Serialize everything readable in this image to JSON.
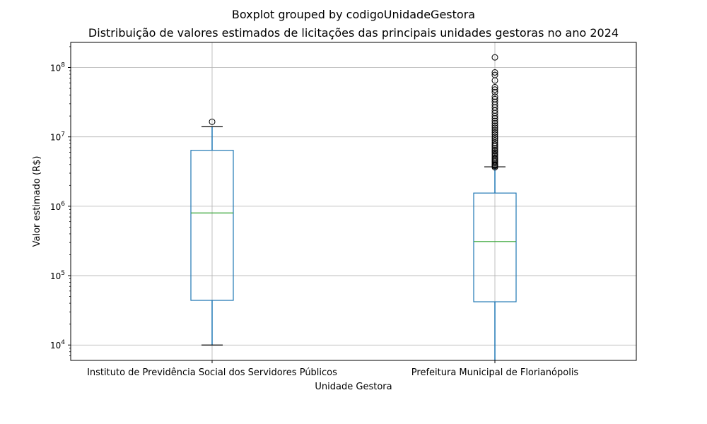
{
  "chart_data": {
    "type": "box",
    "suptitle": "Boxplot grouped by codigoUnidadeGestora",
    "title": "Distribuição de valores estimados de licitações das principais unidades gestoras no ano 2024",
    "xlabel": "Unidade Gestora",
    "ylabel": "Valor estimado (R$)",
    "yscale": "log",
    "ylim": [
      6000,
      230000000
    ],
    "yticks": [
      10000,
      100000,
      1000000,
      10000000,
      100000000
    ],
    "ytick_labels": [
      {
        "base": "10",
        "exp": "4"
      },
      {
        "base": "10",
        "exp": "5"
      },
      {
        "base": "10",
        "exp": "6"
      },
      {
        "base": "10",
        "exp": "7"
      },
      {
        "base": "10",
        "exp": "8"
      }
    ],
    "grid": true,
    "colors": {
      "box": "#1f77b4",
      "median": "#2ca02c",
      "cap": "#000000",
      "grid": "#b0b0b0"
    },
    "categories": [
      "Instituto de Previdência Social dos Servidores Públicos",
      "Prefeitura Municipal de Florianópolis"
    ],
    "boxes": [
      {
        "category": "Instituto de Previdência Social dos Servidores Públicos",
        "whisker_low": 10000,
        "q1": 44000,
        "median": 800000,
        "q3": 6400000,
        "whisker_high": 14000000,
        "outliers": [
          16500000
        ]
      },
      {
        "category": "Prefeitura Municipal de Florianópolis",
        "whisker_low": 6000,
        "q1": 42000,
        "median": 310000,
        "q3": 1550000,
        "whisker_high": 3700000,
        "outliers": [
          3650000,
          3800000,
          3900000,
          4000000,
          4200000,
          4400000,
          4600000,
          4800000,
          5000000,
          5300000,
          5600000,
          5900000,
          6200000,
          6500000,
          6900000,
          7300000,
          7700000,
          8200000,
          8800000,
          9400000,
          10000000,
          10800000,
          11600000,
          12500000,
          13500000,
          14500000,
          15700000,
          17000000,
          18500000,
          20000000,
          22000000,
          24000000,
          26500000,
          29000000,
          32000000,
          35000000,
          38000000,
          44000000,
          48000000,
          52000000,
          65000000,
          78000000,
          85000000,
          140000000
        ]
      }
    ]
  }
}
